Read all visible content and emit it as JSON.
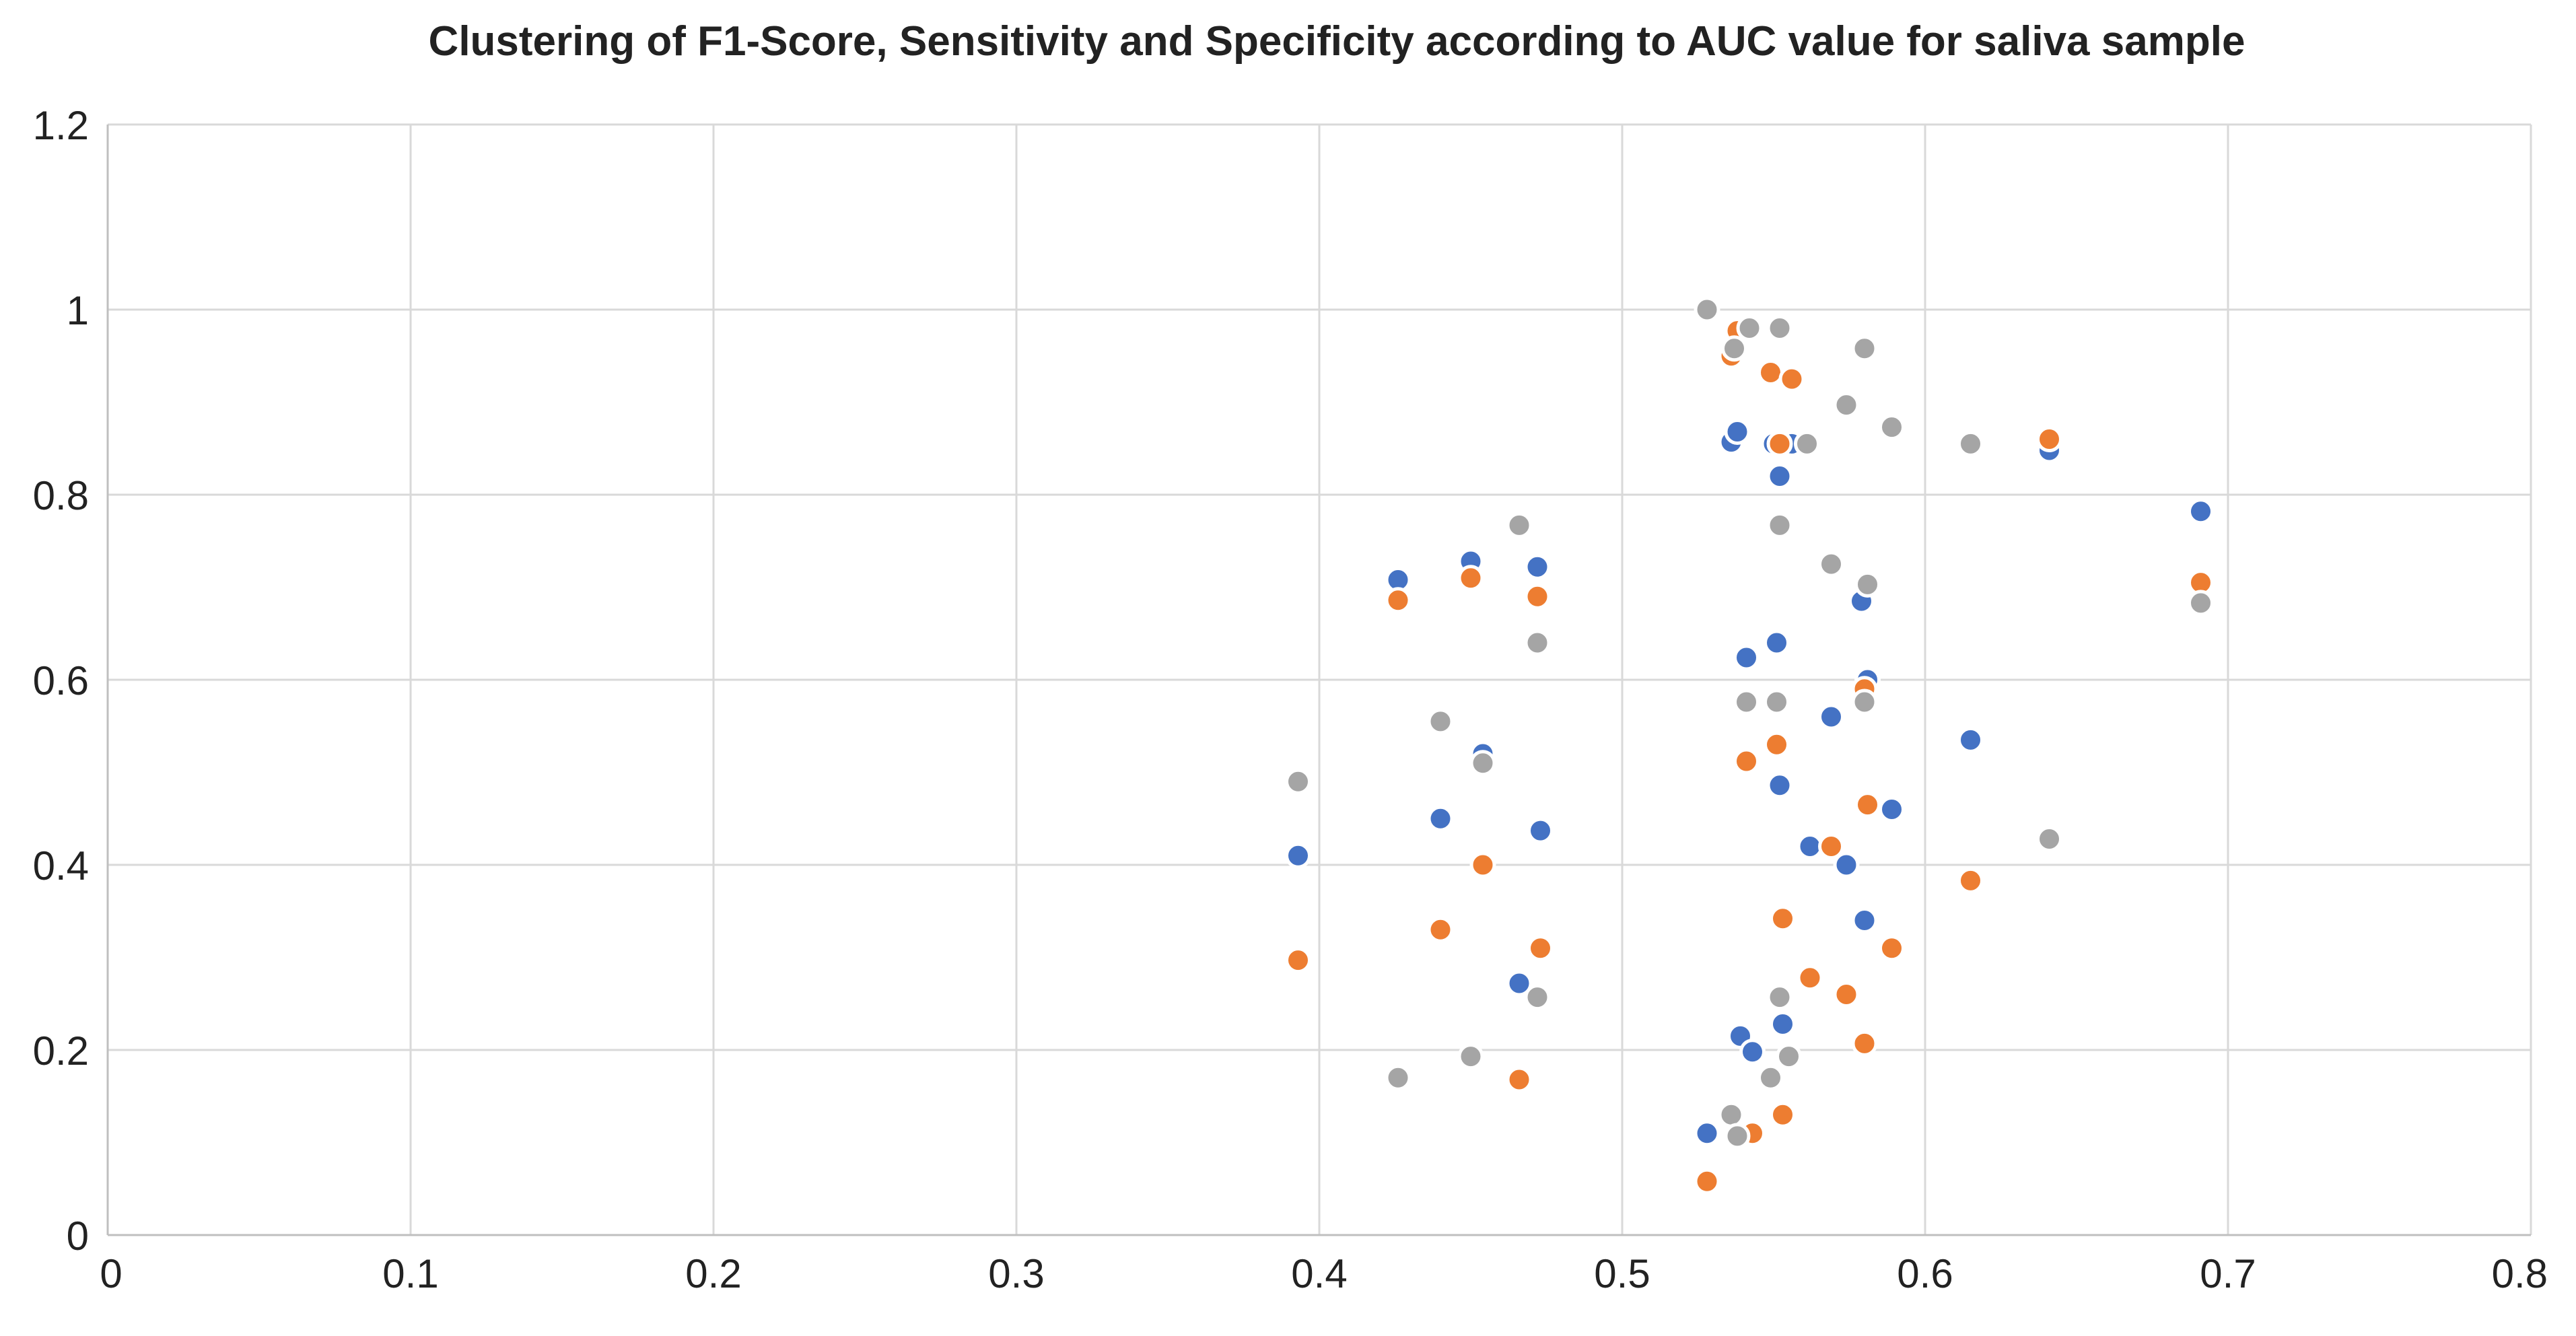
{
  "chart_data": {
    "type": "scatter",
    "title": "Clustering of F1-Score, Sensitivity and Specificity according to AUC value for saliva sample",
    "xlabel": "",
    "ylabel": "",
    "xlim": [
      0,
      0.8
    ],
    "ylim": [
      0,
      1.2
    ],
    "x_ticks": [
      "0",
      "0.1",
      "0.2",
      "0.3",
      "0.4",
      "0.5",
      "0.6",
      "0.7",
      "0.8"
    ],
    "y_ticks": [
      "0",
      "0.2",
      "0.4",
      "0.6",
      "0.8",
      "1",
      "1.2"
    ],
    "grid": true,
    "legend": "none",
    "series": [
      {
        "name": "F1-Score",
        "color": "#4472c4",
        "points": [
          [
            0.393,
            0.41
          ],
          [
            0.426,
            0.708
          ],
          [
            0.44,
            0.45
          ],
          [
            0.45,
            0.728
          ],
          [
            0.454,
            0.52
          ],
          [
            0.466,
            0.272
          ],
          [
            0.472,
            0.722
          ],
          [
            0.473,
            0.437
          ],
          [
            0.528,
            0.11
          ],
          [
            0.536,
            0.857
          ],
          [
            0.538,
            0.868
          ],
          [
            0.539,
            0.215
          ],
          [
            0.541,
            0.624
          ],
          [
            0.543,
            0.198
          ],
          [
            0.55,
            0.855
          ],
          [
            0.551,
            0.64
          ],
          [
            0.552,
            0.82
          ],
          [
            0.552,
            0.486
          ],
          [
            0.553,
            0.228
          ],
          [
            0.556,
            0.855
          ],
          [
            0.562,
            0.42
          ],
          [
            0.569,
            0.56
          ],
          [
            0.574,
            0.4
          ],
          [
            0.579,
            0.685
          ],
          [
            0.58,
            0.34
          ],
          [
            0.581,
            0.6
          ],
          [
            0.589,
            0.46
          ],
          [
            0.615,
            0.535
          ],
          [
            0.641,
            0.848
          ],
          [
            0.691,
            0.782
          ]
        ]
      },
      {
        "name": "Sensitivity",
        "color": "#ed7d31",
        "points": [
          [
            0.393,
            0.297
          ],
          [
            0.426,
            0.686
          ],
          [
            0.44,
            0.33
          ],
          [
            0.45,
            0.71
          ],
          [
            0.454,
            0.4
          ],
          [
            0.466,
            0.168
          ],
          [
            0.472,
            0.69
          ],
          [
            0.473,
            0.31
          ],
          [
            0.528,
            0.058
          ],
          [
            0.536,
            0.95
          ],
          [
            0.538,
            0.977
          ],
          [
            0.541,
            0.512
          ],
          [
            0.543,
            0.11
          ],
          [
            0.549,
            0.932
          ],
          [
            0.551,
            0.53
          ],
          [
            0.552,
            0.855
          ],
          [
            0.553,
            0.342
          ],
          [
            0.553,
            0.13
          ],
          [
            0.556,
            0.925
          ],
          [
            0.562,
            0.278
          ],
          [
            0.569,
            0.42
          ],
          [
            0.574,
            0.26
          ],
          [
            0.58,
            0.59
          ],
          [
            0.58,
            0.207
          ],
          [
            0.581,
            0.465
          ],
          [
            0.589,
            0.31
          ],
          [
            0.615,
            0.383
          ],
          [
            0.641,
            0.86
          ],
          [
            0.691,
            0.705
          ]
        ]
      },
      {
        "name": "Specificity",
        "color": "#a5a5a5",
        "points": [
          [
            0.393,
            0.49
          ],
          [
            0.426,
            0.17
          ],
          [
            0.44,
            0.555
          ],
          [
            0.45,
            0.193
          ],
          [
            0.454,
            0.51
          ],
          [
            0.466,
            0.767
          ],
          [
            0.472,
            0.64
          ],
          [
            0.472,
            0.257
          ],
          [
            0.528,
            1.0
          ],
          [
            0.536,
            0.13
          ],
          [
            0.537,
            0.958
          ],
          [
            0.538,
            0.107
          ],
          [
            0.541,
            0.576
          ],
          [
            0.542,
            0.98
          ],
          [
            0.549,
            0.17
          ],
          [
            0.551,
            0.576
          ],
          [
            0.552,
            0.98
          ],
          [
            0.552,
            0.767
          ],
          [
            0.552,
            0.257
          ],
          [
            0.555,
            0.193
          ],
          [
            0.561,
            0.855
          ],
          [
            0.569,
            0.725
          ],
          [
            0.574,
            0.897
          ],
          [
            0.58,
            0.576
          ],
          [
            0.58,
            0.958
          ],
          [
            0.581,
            0.703
          ],
          [
            0.589,
            0.873
          ],
          [
            0.615,
            0.855
          ],
          [
            0.641,
            0.428
          ],
          [
            0.691,
            0.683
          ]
        ]
      }
    ]
  }
}
